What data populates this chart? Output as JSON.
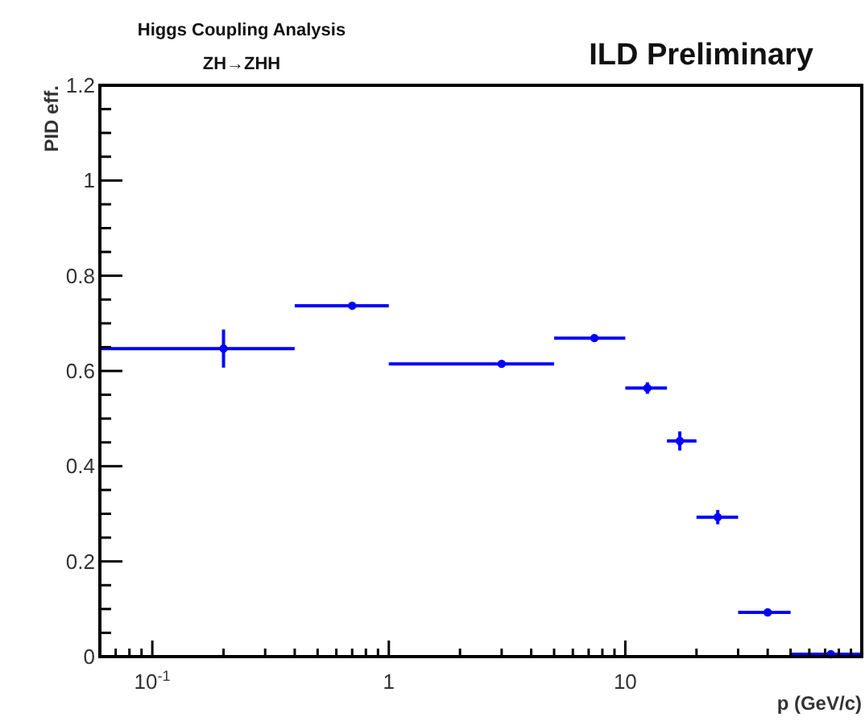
{
  "chart_data": {
    "type": "scatter",
    "title": "Higgs Coupling Analysis",
    "subtitle": "ZH→ZHH",
    "xlabel": "p (GeV/c)",
    "ylabel": "PID eff.",
    "annotations": [
      "ILD Preliminary"
    ],
    "x": [
      0.2,
      0.7,
      3,
      7.4,
      12.4,
      17,
      24.6,
      40,
      74
    ],
    "series": [
      {
        "color": "#0000ff",
        "values": [
          0.647,
          0.737,
          0.615,
          0.669,
          0.564,
          0.453,
          0.293,
          0.093,
          0.005
        ],
        "errors": [
          0.04,
          0.005,
          0.005,
          0.008,
          0.012,
          0.02,
          0.015,
          0.008,
          0.005
        ],
        "xerrors": [
          [
            0.06,
            0.4
          ],
          [
            0.4,
            1
          ],
          [
            1,
            5
          ],
          [
            5,
            10
          ],
          [
            10,
            15
          ],
          [
            15,
            20
          ],
          [
            20,
            30
          ],
          [
            30,
            50
          ],
          [
            50,
            100
          ]
        ]
      }
    ],
    "marker": "circle",
    "log": "x",
    "xlim": [
      0.06,
      100
    ],
    "ylim": [
      0,
      1.2
    ],
    "xticks": [
      {
        "value": 0.07,
        "label": null
      },
      {
        "value": 0.08,
        "label": null
      },
      {
        "value": 0.09,
        "label": null
      },
      {
        "value": 0.1,
        "label": "10$^{-1}$"
      },
      {
        "value": 0.2,
        "label": null
      },
      {
        "value": 0.3,
        "label": null
      },
      {
        "value": 0.4,
        "label": null
      },
      {
        "value": 0.5,
        "label": null
      },
      {
        "value": 0.6,
        "label": null
      },
      {
        "value": 0.7,
        "label": null
      },
      {
        "value": 0.8,
        "label": null
      },
      {
        "value": 0.9,
        "label": null
      },
      1,
      {
        "value": 2,
        "label": null
      },
      {
        "value": 3,
        "label": null
      },
      {
        "value": 4,
        "label": null
      },
      {
        "value": 5,
        "label": null
      },
      {
        "value": 6,
        "label": null
      },
      {
        "value": 7,
        "label": null
      },
      {
        "value": 8,
        "label": null
      },
      {
        "value": 9,
        "label": null
      },
      10,
      {
        "value": 20,
        "label": null
      },
      {
        "value": 30,
        "label": null
      },
      {
        "value": 40,
        "label": null
      },
      {
        "value": 50,
        "label": null
      },
      {
        "value": 60,
        "label": null
      },
      {
        "value": 70,
        "label": null
      },
      {
        "value": 80,
        "label": null
      },
      {
        "value": 90,
        "label": null
      }
    ],
    "yticks": [
      0,
      {
        "value": 0.05,
        "label": null
      },
      {
        "value": 0.1,
        "label": null
      },
      {
        "value": 0.15,
        "label": null
      },
      0.2,
      {
        "value": 0.25,
        "label": null
      },
      {
        "value": 0.3,
        "label": null
      },
      {
        "value": 0.35,
        "label": null
      },
      0.4,
      {
        "value": 0.45,
        "label": null
      },
      {
        "value": 0.5,
        "label": null
      },
      {
        "value": 0.55,
        "label": null
      },
      0.6,
      {
        "value": 0.65,
        "label": null
      },
      {
        "value": 0.7,
        "label": null
      },
      {
        "value": 0.75,
        "label": null
      },
      0.8,
      {
        "value": 0.85,
        "label": null
      },
      {
        "value": 0.9,
        "label": null
      },
      {
        "value": 0.95,
        "label": null
      },
      1,
      {
        "value": 1.05,
        "label": null
      },
      {
        "value": 1.1,
        "label": null
      },
      {
        "value": 1.15,
        "label": null
      },
      1.2
    ]
  }
}
